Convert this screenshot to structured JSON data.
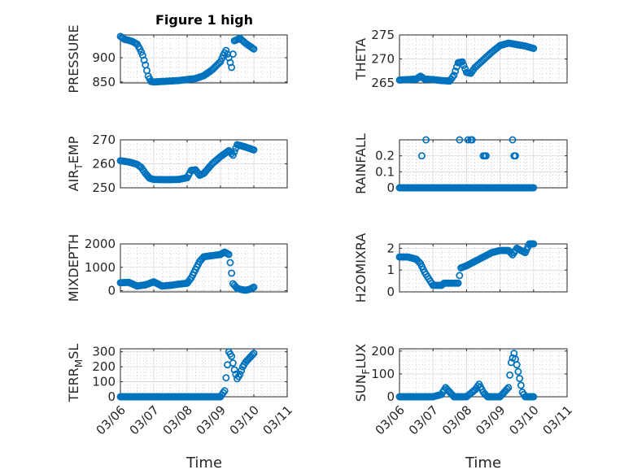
{
  "figure": {
    "title": "Figure 1 high",
    "marker_color": "#0072bd"
  },
  "x_axis": {
    "label": "Time",
    "ticks": [
      "03/06",
      "03/07",
      "03/08",
      "03/09",
      "03/10",
      "03/11"
    ]
  },
  "chart_data": [
    {
      "type": "scatter",
      "ylabel": "PRESSURE",
      "ylabel_sub": "",
      "ylabel_post": "",
      "ylim": [
        848,
        947
      ],
      "yticks": [
        850,
        900
      ],
      "grid": true,
      "x": [
        "03/06 00:00",
        "03/06 03:00",
        "03/06 06:00",
        "03/06 09:00",
        "03/06 12:00",
        "03/06 14:00",
        "03/06 16:00",
        "03/06 18:00",
        "03/06 20:00",
        "03/06 22:00",
        "03/07 00:00",
        "03/07 06:00",
        "03/07 12:00",
        "03/07 18:00",
        "03/08 00:00",
        "03/08 06:00",
        "03/08 12:00",
        "03/08 18:00",
        "03/09 00:00",
        "03/09 02:00",
        "03/09 04:00",
        "03/09 06:00",
        "03/09 08:00",
        "03/09 10:00",
        "03/09 14:00",
        "03/09 18:00",
        "03/09 22:00",
        "03/10 00:00"
      ],
      "y": [
        944,
        938,
        936,
        933,
        928,
        918,
        905,
        885,
        862,
        851,
        850,
        851,
        852,
        853,
        855,
        857,
        863,
        875,
        892,
        905,
        915,
        900,
        880,
        935,
        940,
        930,
        922,
        918
      ]
    },
    {
      "type": "scatter",
      "ylabel": "THETA",
      "ylabel_sub": "",
      "ylabel_post": "",
      "ylim": [
        265,
        275
      ],
      "yticks": [
        265,
        270,
        275
      ],
      "grid": true,
      "x": [
        "03/06 00:00",
        "03/06 06:00",
        "03/06 12:00",
        "03/06 15:00",
        "03/06 18:00",
        "03/07 00:00",
        "03/07 06:00",
        "03/07 12:00",
        "03/07 15:00",
        "03/07 18:00",
        "03/07 21:00",
        "03/08 00:00",
        "03/08 03:00",
        "03/08 06:00",
        "03/08 12:00",
        "03/08 18:00",
        "03/09 00:00",
        "03/09 06:00",
        "03/09 12:00",
        "03/09 18:00",
        "03/10 00:00"
      ],
      "y": [
        265.6,
        265.7,
        265.8,
        266.4,
        265.8,
        265.7,
        265.5,
        265.4,
        266.6,
        269.2,
        269.4,
        267.2,
        267.0,
        268.2,
        269.8,
        271.4,
        272.8,
        273.3,
        273.0,
        272.7,
        272.2
      ]
    },
    {
      "type": "scatter",
      "ylabel": "AIR",
      "ylabel_sub": "T",
      "ylabel_post": "EMP",
      "ylim": [
        250,
        270
      ],
      "yticks": [
        250,
        260,
        270
      ],
      "grid": true,
      "x": [
        "03/06 00:00",
        "03/06 06:00",
        "03/06 12:00",
        "03/06 15:00",
        "03/06 18:00",
        "03/06 21:00",
        "03/07 00:00",
        "03/07 06:00",
        "03/07 12:00",
        "03/07 18:00",
        "03/08 00:00",
        "03/08 03:00",
        "03/08 06:00",
        "03/08 09:00",
        "03/08 12:00",
        "03/08 18:00",
        "03/09 00:00",
        "03/09 06:00",
        "03/09 09:00",
        "03/09 12:00",
        "03/09 18:00",
        "03/10 00:00"
      ],
      "y": [
        261.3,
        260.8,
        259.8,
        258.5,
        256.0,
        254.0,
        253.5,
        253.4,
        253.4,
        253.5,
        254.2,
        257.3,
        257.5,
        255.2,
        256.0,
        260.0,
        263.0,
        265.5,
        263.6,
        268.0,
        267.0,
        265.8
      ]
    },
    {
      "type": "scatter",
      "ylabel": "RAINFALL",
      "ylabel_sub": "",
      "ylabel_post": "",
      "ylim": [
        0,
        0.3
      ],
      "yticks": [
        0,
        0.1,
        0.2
      ],
      "grid": true,
      "x": [
        "03/06 00:00",
        "03/06 06:00",
        "03/06 12:00",
        "03/06 18:00",
        "03/07 00:00",
        "03/07 06:00",
        "03/07 12:00",
        "03/07 18:00",
        "03/08 00:00",
        "03/08 06:00",
        "03/08 12:00",
        "03/08 18:00",
        "03/09 00:00",
        "03/09 06:00",
        "03/09 12:00",
        "03/09 18:00",
        "03/10 00:00",
        "03/06 16:00",
        "03/06 19:00",
        "03/07 19:00",
        "03/08 01:00",
        "03/08 03:00",
        "03/08 04:00",
        "03/08 12:00",
        "03/08 13:00",
        "03/08 14:00",
        "03/09 09:00",
        "03/09 10:00",
        "03/09 11:00",
        "03/08 09:00",
        "03/08 22:00"
      ],
      "y": [
        0,
        0,
        0,
        0,
        0,
        0,
        0,
        0,
        0,
        0,
        0,
        0,
        0,
        0,
        0,
        0,
        0,
        0.2,
        0.3,
        0.3,
        0.3,
        0.3,
        0.3,
        0.2,
        0.2,
        0.2,
        0.3,
        0.2,
        0.2,
        0,
        0
      ]
    },
    {
      "type": "scatter",
      "ylabel": "MIXDEPTH",
      "ylabel_sub": "",
      "ylabel_post": "",
      "ylim": [
        -50,
        2000
      ],
      "yticks": [
        0,
        1000,
        2000
      ],
      "grid": true,
      "x": [
        "03/06 00:00",
        "03/06 06:00",
        "03/06 12:00",
        "03/06 18:00",
        "03/07 00:00",
        "03/07 06:00",
        "03/07 12:00",
        "03/07 18:00",
        "03/08 00:00",
        "03/08 03:00",
        "03/08 06:00",
        "03/08 09:00",
        "03/08 12:00",
        "03/08 18:00",
        "03/09 00:00",
        "03/09 03:00",
        "03/09 06:00",
        "03/09 07:00",
        "03/09 09:00",
        "03/09 12:00",
        "03/09 15:00",
        "03/09 18:00",
        "03/09 21:00",
        "03/10 00:00"
      ],
      "y": [
        340,
        360,
        200,
        250,
        380,
        200,
        230,
        280,
        320,
        550,
        900,
        1250,
        1450,
        1500,
        1550,
        1650,
        1550,
        1200,
        300,
        100,
        50,
        20,
        60,
        150
      ]
    },
    {
      "type": "scatter",
      "ylabel": "H2OMIXRA",
      "ylabel_sub": "",
      "ylabel_post": "",
      "ylim": [
        0,
        2.2
      ],
      "yticks": [
        0,
        1,
        2
      ],
      "grid": true,
      "x": [
        "03/06 00:00",
        "03/06 06:00",
        "03/06 12:00",
        "03/06 15:00",
        "03/06 18:00",
        "03/06 21:00",
        "03/07 00:00",
        "03/07 06:00",
        "03/07 08:00",
        "03/07 12:00",
        "03/07 18:00",
        "03/07 20:00",
        "03/08 00:00",
        "03/08 06:00",
        "03/08 12:00",
        "03/08 18:00",
        "03/09 00:00",
        "03/09 06:00",
        "03/09 09:00",
        "03/09 12:00",
        "03/09 15:00",
        "03/09 18:00",
        "03/09 21:00",
        "03/10 00:00"
      ],
      "y": [
        1.6,
        1.6,
        1.5,
        1.3,
        0.9,
        0.6,
        0.3,
        0.3,
        0.4,
        0.4,
        0.4,
        1.1,
        1.2,
        1.4,
        1.6,
        1.8,
        1.9,
        1.9,
        1.7,
        2.0,
        1.9,
        1.8,
        2.2,
        2.2
      ]
    },
    {
      "type": "scatter",
      "ylabel": "TERR",
      "ylabel_sub": "M",
      "ylabel_post": "SL",
      "ylim": [
        0,
        320
      ],
      "yticks": [
        0,
        100,
        200,
        300
      ],
      "grid": true,
      "x": [
        "03/06 00:00",
        "03/06 06:00",
        "03/06 12:00",
        "03/06 18:00",
        "03/07 00:00",
        "03/07 06:00",
        "03/07 12:00",
        "03/07 18:00",
        "03/08 00:00",
        "03/08 06:00",
        "03/08 12:00",
        "03/08 18:00",
        "03/09 00:00",
        "03/09 03:00",
        "03/09 06:00",
        "03/09 08:00",
        "03/09 10:00",
        "03/09 12:00",
        "03/09 14:00",
        "03/09 16:00",
        "03/09 18:00",
        "03/09 21:00",
        "03/10 00:00"
      ],
      "y": [
        0,
        0,
        0,
        0,
        0,
        0,
        0,
        0,
        0,
        0,
        0,
        0,
        0,
        40,
        300,
        270,
        180,
        120,
        150,
        200,
        230,
        260,
        290
      ]
    },
    {
      "type": "scatter",
      "ylabel": "SUN",
      "ylabel_sub": "F",
      "ylabel_post": "LUX",
      "ylim": [
        0,
        210
      ],
      "yticks": [
        0,
        100,
        200
      ],
      "grid": true,
      "x": [
        "03/06 00:00",
        "03/06 06:00",
        "03/06 12:00",
        "03/06 18:00",
        "03/07 00:00",
        "03/07 06:00",
        "03/07 09:00",
        "03/07 12:00",
        "03/07 15:00",
        "03/07 18:00",
        "03/08 00:00",
        "03/08 06:00",
        "03/08 09:00",
        "03/08 12:00",
        "03/08 15:00",
        "03/08 18:00",
        "03/09 00:00",
        "03/09 06:00",
        "03/09 08:00",
        "03/09 10:00",
        "03/09 12:00",
        "03/09 14:00",
        "03/09 16:00",
        "03/09 18:00",
        "03/10 00:00"
      ],
      "y": [
        0,
        0,
        0,
        0,
        0,
        10,
        40,
        20,
        0,
        0,
        0,
        30,
        55,
        20,
        0,
        0,
        0,
        40,
        150,
        190,
        140,
        80,
        20,
        0,
        0
      ]
    }
  ]
}
